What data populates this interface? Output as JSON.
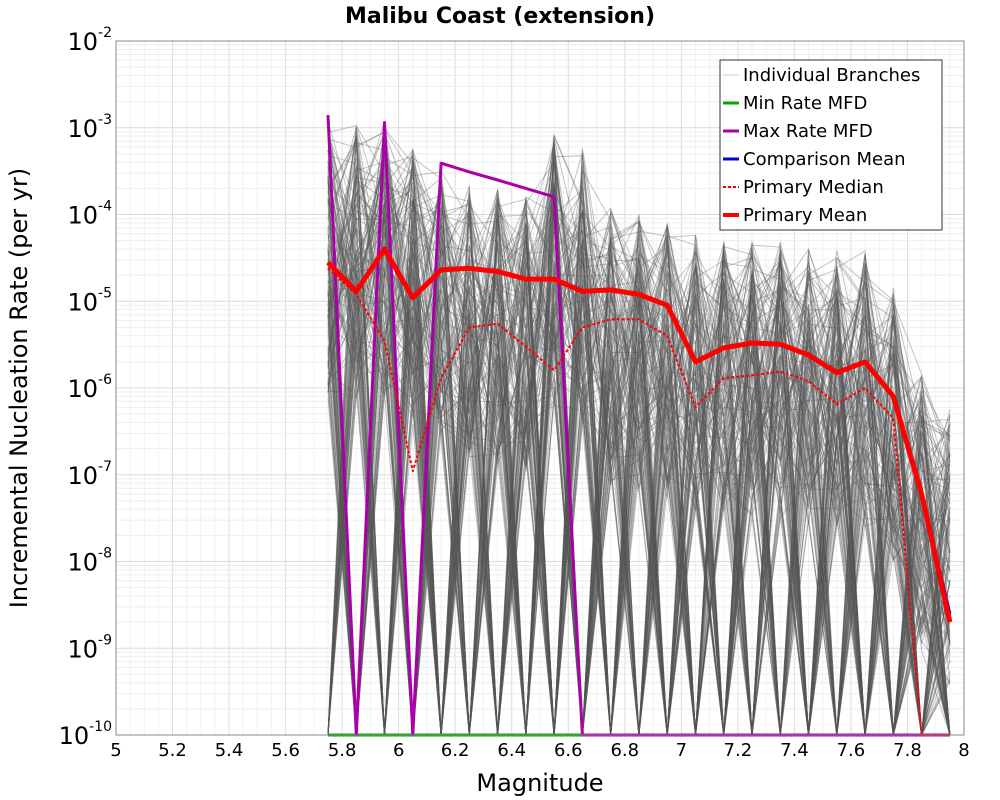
{
  "chart_data": {
    "type": "line",
    "title": "Malibu Coast (extension)",
    "xlabel": "Magnitude",
    "ylabel": "Incremental Nucleation Rate (per yr)",
    "xlim": [
      5,
      8
    ],
    "ylim": [
      1e-10,
      0.01
    ],
    "yscale": "log",
    "grid": true,
    "legend_position": "top-right",
    "x_ticks": [
      "5",
      "5.2",
      "5.4",
      "5.6",
      "5.8",
      "6",
      "6.2",
      "6.4",
      "6.6",
      "6.8",
      "7",
      "7.2",
      "7.4",
      "7.6",
      "7.8",
      "8"
    ],
    "y_ticks": [
      {
        "base": "10",
        "exp": "-10"
      },
      {
        "base": "10",
        "exp": "-9"
      },
      {
        "base": "10",
        "exp": "-8"
      },
      {
        "base": "10",
        "exp": "-7"
      },
      {
        "base": "10",
        "exp": "-6"
      },
      {
        "base": "10",
        "exp": "-5"
      },
      {
        "base": "10",
        "exp": "-4"
      },
      {
        "base": "10",
        "exp": "-3"
      },
      {
        "base": "10",
        "exp": "-2"
      }
    ],
    "colors": {
      "individual": "#555555",
      "individual_legend": "#c8c8c8",
      "min": "#00aa00",
      "max": "#aa00aa",
      "comparison": "#0000dd",
      "median": "#ff0000",
      "mean": "#ff0000"
    },
    "legend": [
      {
        "name": "Individual Branches",
        "key": "individual"
      },
      {
        "name": "Min Rate MFD",
        "key": "min"
      },
      {
        "name": "Max Rate MFD",
        "key": "max"
      },
      {
        "name": "Comparison Mean",
        "key": "comparison"
      },
      {
        "name": "Primary Median",
        "key": "median"
      },
      {
        "name": "Primary Mean",
        "key": "mean"
      }
    ],
    "x": [
      5.75,
      5.85,
      5.95,
      6.05,
      6.15,
      6.25,
      6.35,
      6.45,
      6.55,
      6.65,
      6.75,
      6.85,
      6.95,
      7.05,
      7.15,
      7.25,
      7.35,
      7.45,
      7.55,
      7.65,
      7.75,
      7.85,
      7.95
    ],
    "series": [
      {
        "name": "Primary Mean",
        "values": [
          2.8e-05,
          1.3e-05,
          4e-05,
          1.1e-05,
          2.3e-05,
          2.4e-05,
          2.2e-05,
          1.8e-05,
          1.8e-05,
          1.3e-05,
          1.35e-05,
          1.2e-05,
          9e-06,
          2e-06,
          2.9e-06,
          3.3e-06,
          3.2e-06,
          2.4e-06,
          1.5e-06,
          2e-06,
          8e-07,
          6e-08,
          2e-09
        ]
      },
      {
        "name": "Primary Median",
        "values": [
          2.4e-05,
          1.2e-05,
          3.5e-06,
          1.1e-07,
          1.3e-06,
          5e-06,
          5.5e-06,
          3e-06,
          1.6e-06,
          5e-06,
          6.2e-06,
          6.2e-06,
          4e-06,
          6e-07,
          1.3e-06,
          1.4e-06,
          1.55e-06,
          1.2e-06,
          6.5e-07,
          1e-06,
          4.5e-07,
          1e-10,
          1e-10
        ]
      },
      {
        "name": "Comparison Mean",
        "values": [
          2.8e-05,
          1.3e-05,
          4e-05,
          1.1e-05,
          2.3e-05,
          2.4e-05,
          2.2e-05,
          1.8e-05,
          1.8e-05,
          1.3e-05,
          1.35e-05,
          1.2e-05,
          9e-06,
          2e-06,
          2.9e-06,
          3.3e-06,
          3.2e-06,
          2.4e-06,
          1.5e-06,
          2e-06,
          8e-07,
          6e-08,
          2.5e-09
        ]
      },
      {
        "name": "Max Rate MFD",
        "values": [
          0.0014,
          1e-10,
          0.00115,
          1e-10,
          0.00039,
          0.00031,
          0.00025,
          0.0002,
          0.00016,
          1e-10,
          1e-10,
          1e-10,
          1e-10,
          1e-10,
          1e-10,
          1e-10,
          1e-10,
          1e-10,
          1e-10,
          1e-10,
          1e-10,
          1e-10,
          1e-10
        ]
      },
      {
        "name": "Min Rate MFD",
        "values": [
          1e-10,
          1e-10,
          1e-10,
          1e-10,
          1e-10,
          1e-10,
          1e-10,
          1e-10,
          1e-10,
          1e-10,
          1e-10,
          1e-10,
          1e-10,
          1e-10,
          1e-10,
          1e-10,
          1e-10,
          1e-10,
          1e-10,
          1e-10,
          1e-10,
          1e-10,
          1e-10
        ]
      }
    ],
    "individual_branches": {
      "peak_values": [
        0.0012,
        0.0012,
        0.0012,
        0.0006,
        0.00035,
        0.00025,
        0.0002,
        0.00016,
        0.0009,
        0.0006,
        0.00012,
        0.0001,
        8e-05,
        6e-05,
        6e-05,
        5e-05,
        5e-05,
        4e-05,
        4e-05,
        4e-05,
        1.5e-05,
        1.5e-06,
        6e-07
      ]
    }
  }
}
